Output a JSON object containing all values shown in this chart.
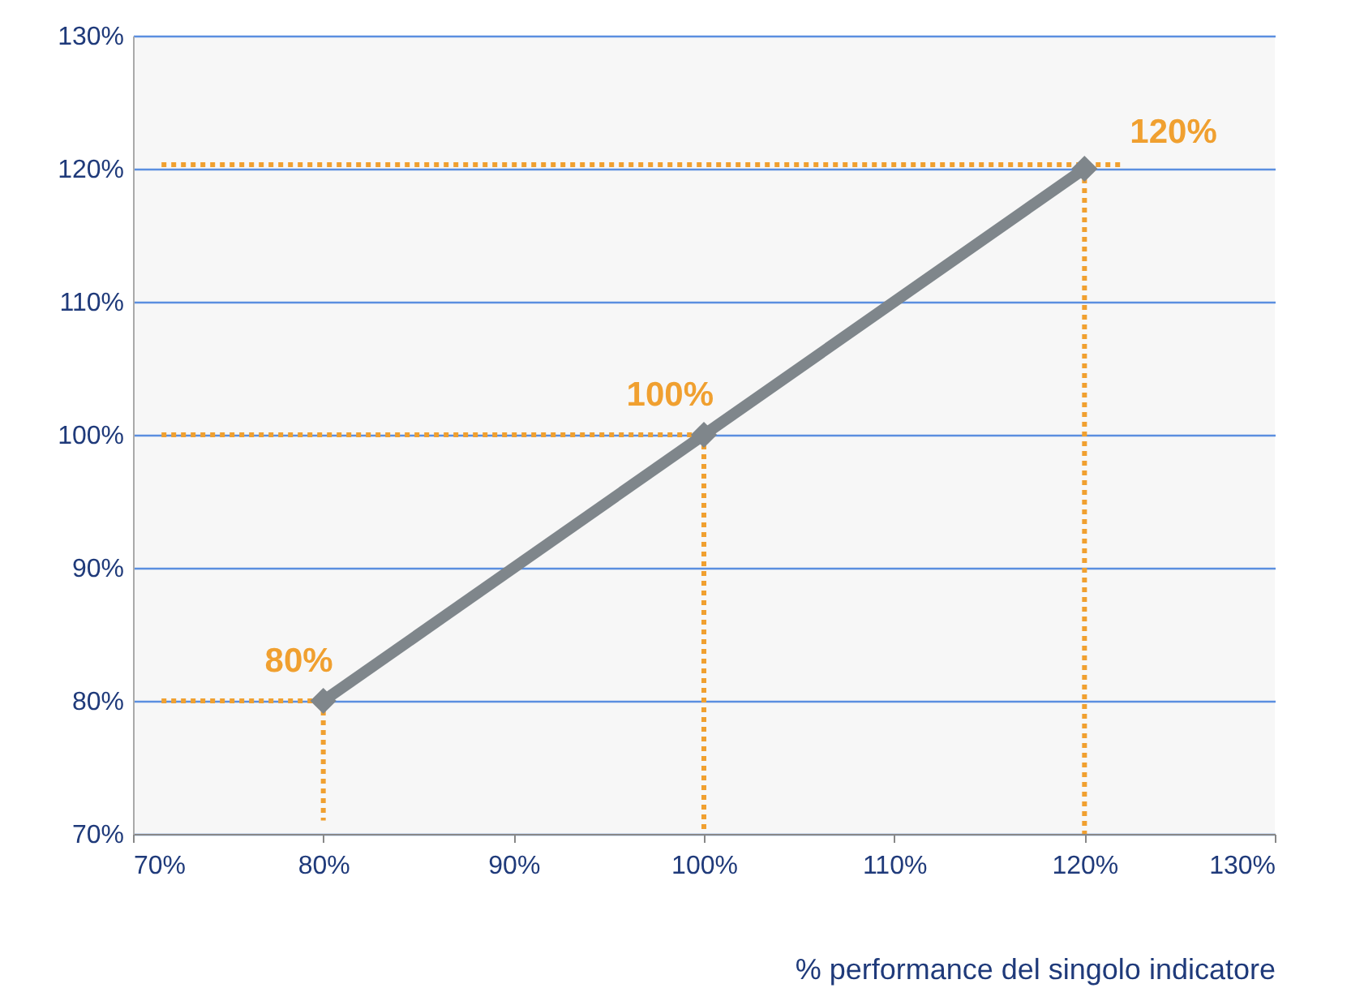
{
  "chart_data": {
    "type": "line",
    "xlabel": "% performance del singolo indicatore",
    "xlim": [
      70,
      130
    ],
    "ylim": [
      70,
      130
    ],
    "xticks": [
      {
        "value": 70,
        "label": "70%"
      },
      {
        "value": 80,
        "label": "80%"
      },
      {
        "value": 90,
        "label": "90%"
      },
      {
        "value": 100,
        "label": "100%"
      },
      {
        "value": 110,
        "label": "110%"
      },
      {
        "value": 120,
        "label": "120%"
      },
      {
        "value": 130,
        "label": "130%"
      }
    ],
    "yticks": [
      {
        "value": 70,
        "label": "70%"
      },
      {
        "value": 80,
        "label": "80%"
      },
      {
        "value": 90,
        "label": "90%"
      },
      {
        "value": 100,
        "label": "100%"
      },
      {
        "value": 110,
        "label": "110%"
      },
      {
        "value": 120,
        "label": "120%"
      },
      {
        "value": 130,
        "label": "130%"
      }
    ],
    "grid": "y",
    "series": [
      {
        "color": "#7f868b",
        "x": [
          80,
          100,
          120
        ],
        "values": [
          80,
          100,
          120
        ],
        "marker": "diamond",
        "line_style": "solid"
      },
      {
        "color": "#f0a030",
        "x": [
          71.5,
          80
        ],
        "values": [
          80,
          80
        ],
        "marker": "none",
        "line_style": "dotted"
      },
      {
        "color": "#f0a030",
        "x": [
          80,
          80
        ],
        "values": [
          80,
          71
        ],
        "marker": "none",
        "line_style": "dotted"
      },
      {
        "color": "#f0a030",
        "x": [
          71.5,
          100
        ],
        "values": [
          100,
          100
        ],
        "marker": "none",
        "line_style": "dotted"
      },
      {
        "color": "#f0a030",
        "x": [
          100,
          100
        ],
        "values": [
          100,
          70
        ],
        "marker": "none",
        "line_style": "dotted"
      },
      {
        "color": "#f0a030",
        "x": [
          71.5,
          122
        ],
        "values": [
          120.3,
          120.3
        ],
        "marker": "none",
        "line_style": "dotted"
      },
      {
        "color": "#f0a030",
        "x": [
          120,
          120
        ],
        "values": [
          120,
          70
        ],
        "marker": "none",
        "line_style": "dotted"
      }
    ],
    "annotations": [
      {
        "text": "80%",
        "x": 80,
        "y": 80
      },
      {
        "text": "100%",
        "x": 100,
        "y": 100
      },
      {
        "text": "120%",
        "x": 120,
        "y": 120
      }
    ]
  }
}
